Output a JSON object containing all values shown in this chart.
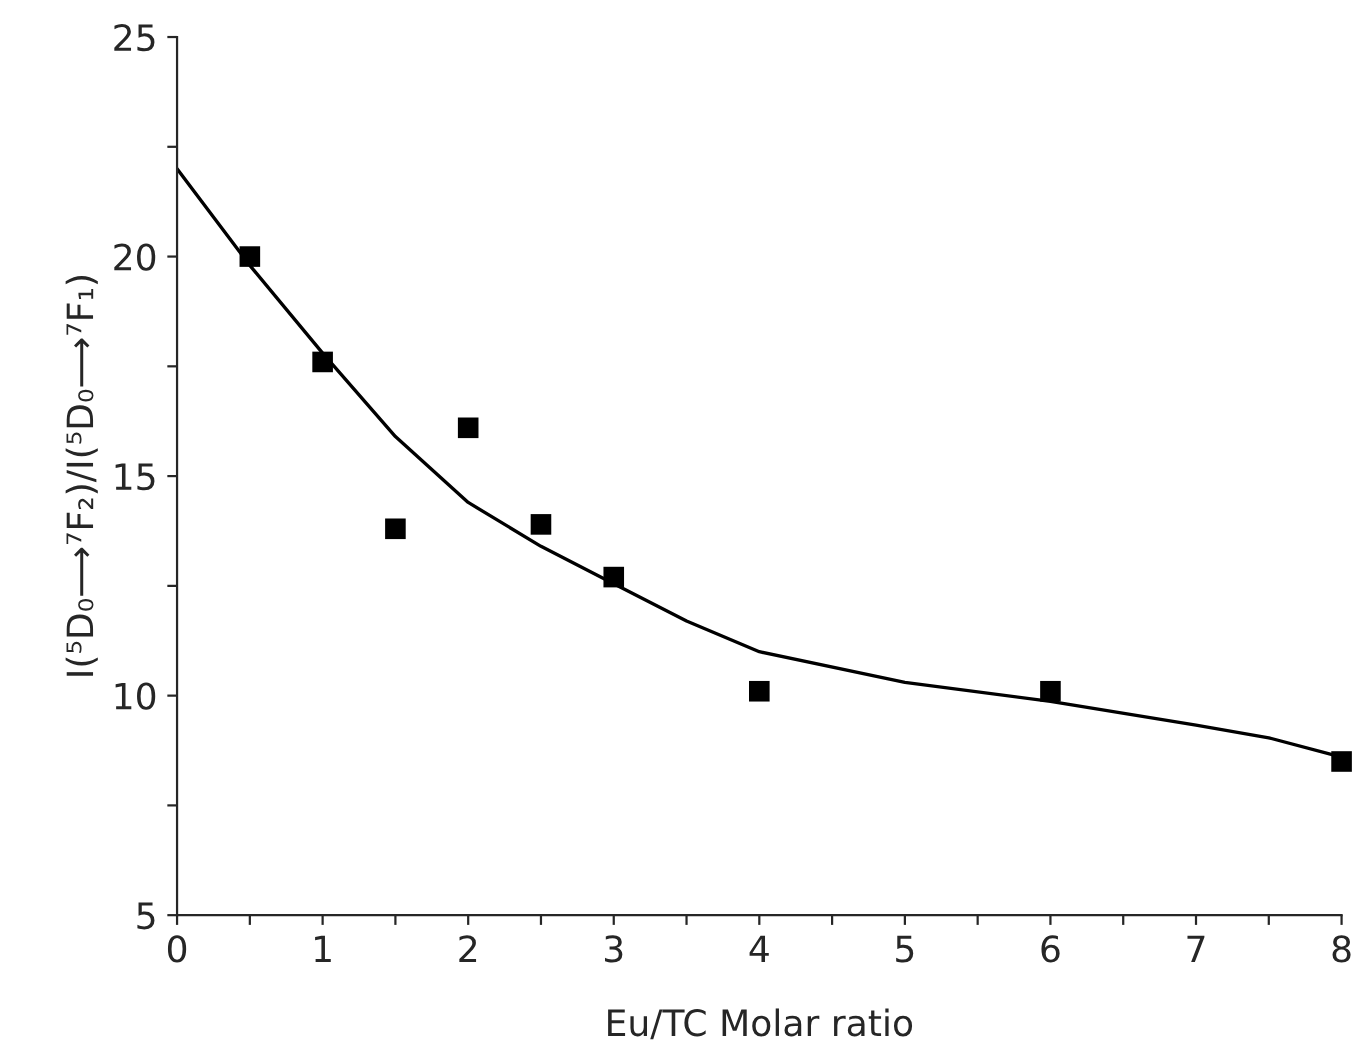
{
  "chart_data": {
    "type": "scatter",
    "xlabel": "Eu/TC Molar ratio",
    "ylabel": "I(⁵D₀⟶⁷F₂)/I(⁵D₀⟶⁷F₁)",
    "xlim": [
      0,
      8
    ],
    "ylim": [
      5,
      25
    ],
    "xticks": [
      0,
      {
        "value": 0.5,
        "label": null
      },
      1,
      {
        "value": 1.5,
        "label": null
      },
      2,
      {
        "value": 2.5,
        "label": null
      },
      3,
      {
        "value": 3.5,
        "label": null
      },
      4,
      {
        "value": 4.5,
        "label": null
      },
      5,
      {
        "value": 5.5,
        "label": null
      },
      6,
      {
        "value": 6.5,
        "label": null
      },
      7,
      {
        "value": 7.5,
        "label": null
      },
      8
    ],
    "yticks": [
      5,
      {
        "value": 7.5,
        "label": null
      },
      10,
      {
        "value": 12.5,
        "label": null
      },
      15,
      {
        "value": 17.5,
        "label": null
      },
      20,
      {
        "value": 22.5,
        "label": null
      },
      25
    ],
    "grid": false,
    "legend": false,
    "series": [
      {
        "marker": "square",
        "color": "#000000",
        "x": [
          0.5,
          1,
          1.5,
          2,
          2.5,
          3,
          4,
          6,
          8
        ],
        "values": [
          20.0,
          17.6,
          13.8,
          16.1,
          13.9,
          12.7,
          10.1,
          10.1,
          8.5
        ]
      },
      {
        "type": "line",
        "marker": "none",
        "color": "#000000",
        "x": [
          0,
          0.5,
          1,
          1.5,
          2,
          2.5,
          3,
          3.5,
          4,
          5,
          6,
          7,
          7.5,
          8
        ],
        "values": [
          22.0,
          19.8,
          17.8,
          15.9,
          14.4,
          13.4,
          12.55,
          11.7,
          11.0,
          10.3,
          9.87,
          9.33,
          9.04,
          8.6
        ]
      }
    ]
  }
}
